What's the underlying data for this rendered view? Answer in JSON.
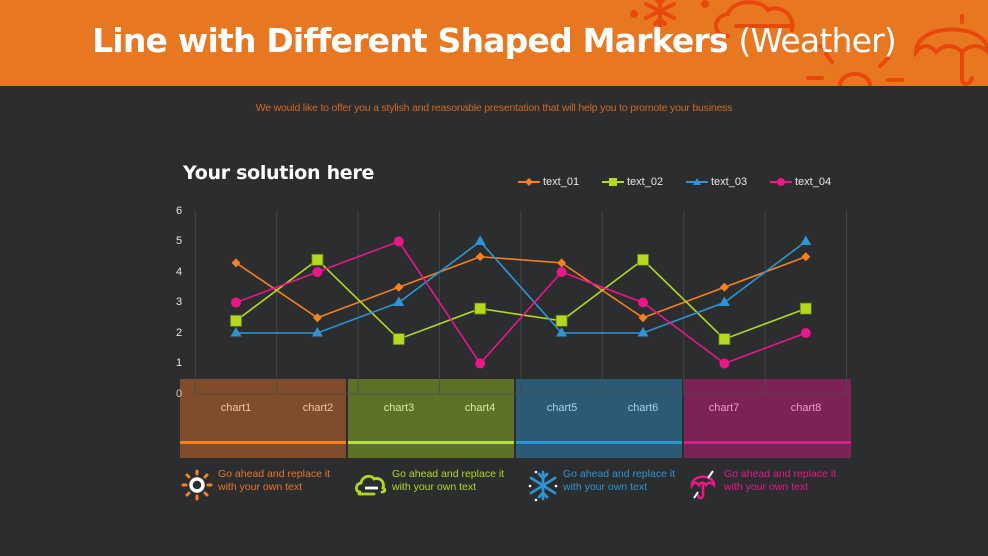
{
  "header": {
    "title_bold": "Line with Different Shaped Markers ",
    "title_light": "(Weather)",
    "subtitle": "We would like to offer you a stylish and reasonable presentation that will help you to promote your business"
  },
  "section": {
    "title": "Your solution here"
  },
  "legend": [
    {
      "label": "text_01",
      "color": "#f5821f",
      "marker": "diamond"
    },
    {
      "label": "text_02",
      "color": "#b5d91f",
      "marker": "square"
    },
    {
      "label": "text_03",
      "color": "#2e95d3",
      "marker": "triangle"
    },
    {
      "label": "text_04",
      "color": "#e8178a",
      "marker": "circle"
    }
  ],
  "bands": [
    {
      "labels": [
        "chart1",
        "chart2"
      ],
      "fill": "#7f4d2a",
      "line": "#f5821f",
      "text": "#f0c8a0"
    },
    {
      "labels": [
        "chart3",
        "chart4"
      ],
      "fill": "#5e7129",
      "line": "#b5e61d",
      "text": "#d8ec9a"
    },
    {
      "labels": [
        "chart5",
        "chart6"
      ],
      "fill": "#2a5a74",
      "line": "#2e95d3",
      "text": "#a8d2ef"
    },
    {
      "labels": [
        "chart7",
        "chart8"
      ],
      "fill": "#7a2354",
      "line": "#e8178a",
      "text": "#f49ac8"
    }
  ],
  "footer": [
    {
      "icon": "sun-icon",
      "line1": "Go ahead and replace it",
      "line2": "with your own text",
      "color": "#e8772a"
    },
    {
      "icon": "cloud-icon",
      "line1": "Go ahead and replace it",
      "line2": "with your own text",
      "color": "#b5d91f"
    },
    {
      "icon": "snowflake-icon",
      "line1": "Go ahead and replace it",
      "line2": "with your own text",
      "color": "#2e95d3"
    },
    {
      "icon": "umbrella-icon",
      "line1": "Go ahead and replace it",
      "line2": "with your own text",
      "color": "#e8178a"
    }
  ],
  "chart_data": {
    "type": "line",
    "title": "Your solution here",
    "xlabel": "",
    "ylabel": "",
    "categories": [
      "chart1",
      "chart2",
      "chart3",
      "chart4",
      "chart5",
      "chart6",
      "chart7",
      "chart8"
    ],
    "yticks": [
      "0",
      "1",
      "2",
      "3",
      "4",
      "5",
      "6"
    ],
    "ylim": [
      0,
      6
    ],
    "grid": "vertical",
    "legend_position": "top-right",
    "series": [
      {
        "name": "text_01",
        "marker": "diamond",
        "color": "#f5821f",
        "values": [
          4.3,
          2.5,
          3.5,
          4.5,
          4.3,
          2.5,
          3.5,
          4.5
        ]
      },
      {
        "name": "text_02",
        "marker": "square",
        "color": "#b5d91f",
        "values": [
          2.4,
          4.4,
          1.8,
          2.8,
          2.4,
          4.4,
          1.8,
          2.8
        ]
      },
      {
        "name": "text_03",
        "marker": "triangle",
        "color": "#2e95d3",
        "values": [
          2,
          2,
          3,
          5,
          2,
          2,
          3,
          5
        ]
      },
      {
        "name": "text_04",
        "marker": "circle",
        "color": "#e8178a",
        "values": [
          3,
          4,
          5,
          1,
          4,
          3,
          1,
          2
        ]
      }
    ]
  }
}
